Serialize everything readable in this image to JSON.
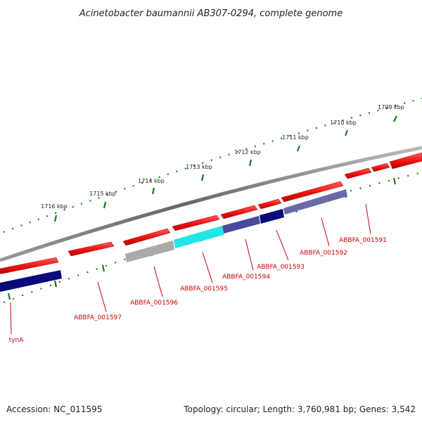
{
  "title": "Acinetobacter baumannii AB307-0294, complete genome",
  "ruler_labels": [
    "1709 kbp",
    "1710 kbp",
    "1711 kbp",
    "1712 kbp",
    "1713 kbp",
    "1714 kbp",
    "1715 kbp",
    "1716 kbp"
  ],
  "genes": [
    {
      "label": "ABBFA_001591",
      "strand": "forward",
      "color": "#ee1111"
    },
    {
      "label": "ABBFA_001592",
      "strand": "forward",
      "color": "#ee1111"
    },
    {
      "label": "ABBFA_001593",
      "strand": "forward",
      "color": "#ee1111"
    },
    {
      "label": "ABBFA_001594",
      "strand": "forward",
      "color": "#ee1111"
    },
    {
      "label": "ABBFA_001595",
      "strand": "forward",
      "color": "#ee1111"
    },
    {
      "label": "ABBFA_001596",
      "strand": "forward",
      "color": "#ee1111"
    },
    {
      "label": "ABBFA_001597",
      "strand": "forward",
      "color": "#ee1111"
    },
    {
      "label": "tynA",
      "strand": "forward",
      "color": "#ee1111"
    }
  ],
  "colors": {
    "cds_forward": "#ee1111",
    "ruler_tick": "#1a7a1a",
    "backbone": "#777777",
    "feature_navy": "#0a0a78",
    "feature_cyan": "#22e6e6",
    "feature_grey": "#aaaaaa",
    "label_red": "#cc0000"
  },
  "footer": {
    "accession": "Accession: NC_011595",
    "topology": "Topology: circular; Length: 3,760,981 bp; Genes: 3,542"
  }
}
